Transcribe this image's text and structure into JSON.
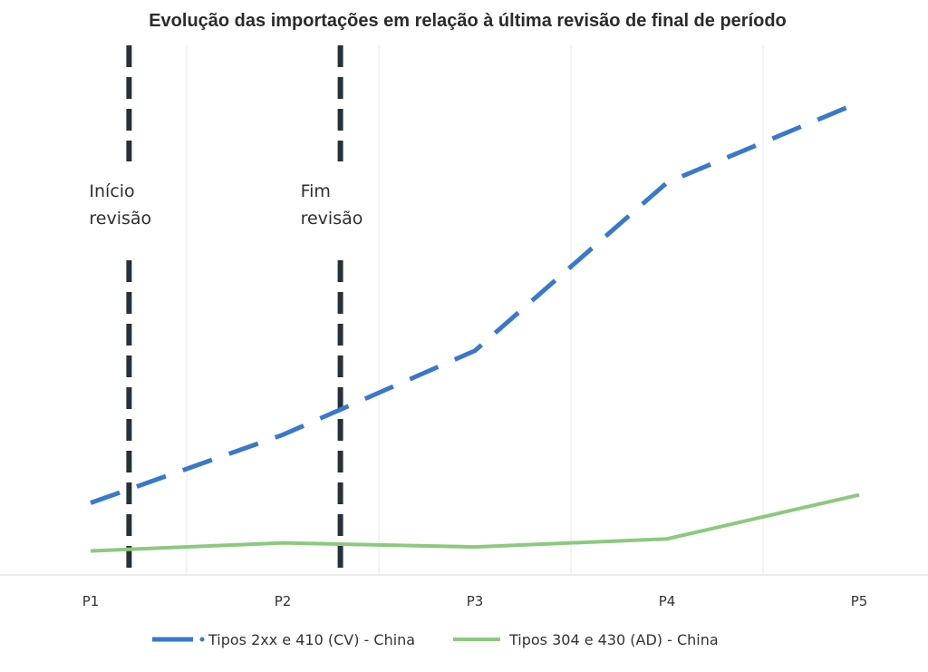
{
  "chart_data": {
    "type": "line",
    "title": "Evolução das importações em relação à última revisão de final de período",
    "categories": [
      "P1",
      "P2",
      "P3",
      "P4",
      "P5"
    ],
    "series": [
      {
        "name": "Tipos 2xx e 410 (CV) - China",
        "values": [
          18,
          35,
          56,
          98,
          118
        ],
        "color": "#3a78c9",
        "style": "dashed"
      },
      {
        "name": "Tipos 304 e 430 (AD) - China",
        "values": [
          6,
          8,
          7,
          9,
          20
        ],
        "color": "#8cc97f",
        "style": "solid"
      }
    ],
    "ylim": [
      0,
      130
    ],
    "grid": "vertical",
    "legend_position": "bottom",
    "annotations": [
      {
        "line1": "Início",
        "line2": "revisão",
        "x": 1.2
      },
      {
        "line1": "Fim",
        "line2": "revisão",
        "x": 2.3
      }
    ]
  }
}
